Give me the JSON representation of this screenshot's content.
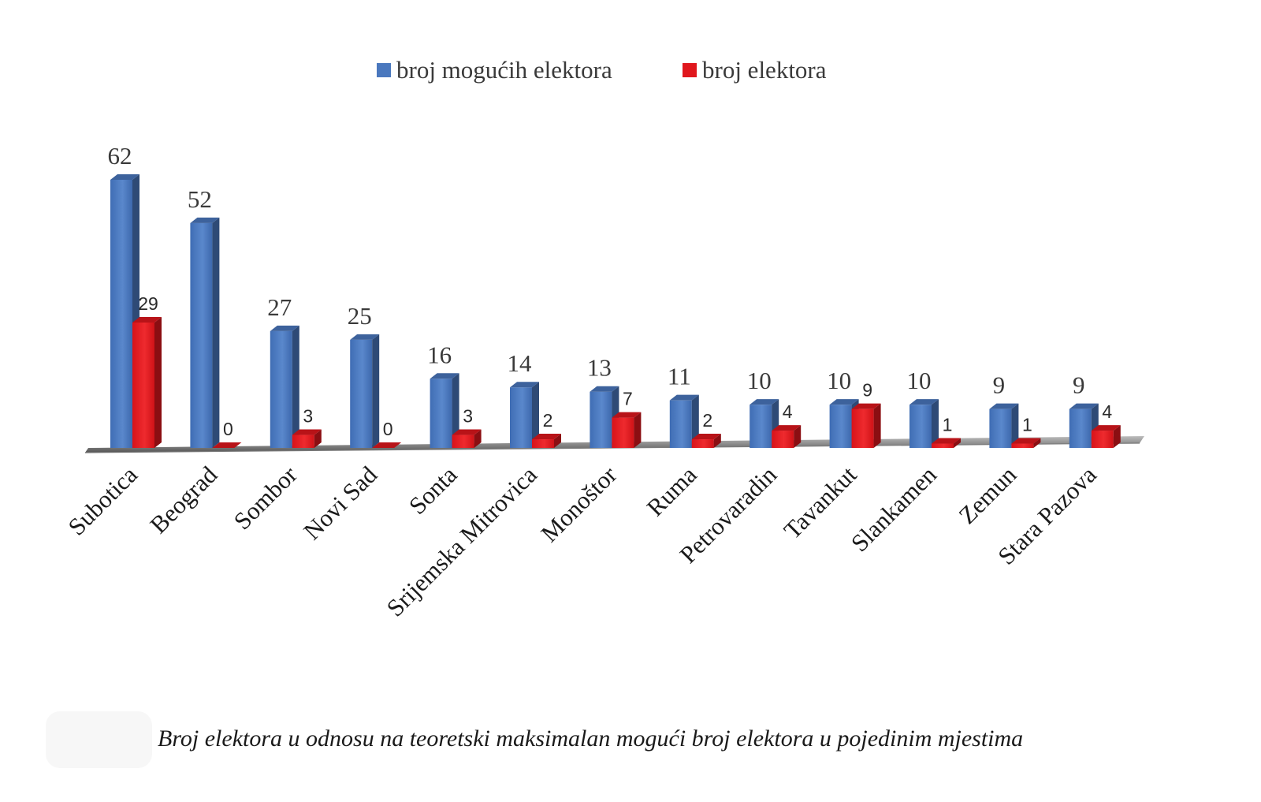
{
  "chart_data": {
    "type": "bar",
    "title": "",
    "xlabel": "",
    "ylabel": "",
    "ylim": [
      0,
      62
    ],
    "grid": false,
    "legend_position": "top-center",
    "categories": [
      "Subotica",
      "Beograd",
      "Sombor",
      "Novi Sad",
      "Sonta",
      "Srijemska Mitrovica",
      "Monoštor",
      "Ruma",
      "Petrovaradin",
      "Tavankut",
      "Slankamen",
      "Zemun",
      "Stara Pazova"
    ],
    "series": [
      {
        "name": "broj mogućih elektora",
        "color": "#4a78be",
        "values": [
          62,
          52,
          27,
          25,
          16,
          14,
          13,
          11,
          10,
          10,
          10,
          9,
          9
        ]
      },
      {
        "name": "broj elektora",
        "color": "#e0171d",
        "values": [
          29,
          0,
          3,
          0,
          3,
          2,
          7,
          2,
          4,
          9,
          1,
          1,
          4
        ]
      }
    ]
  },
  "caption": "Broj elektora u odnosu na teoretski maksimalan mogući broj elektora u pojedinim mjestima"
}
